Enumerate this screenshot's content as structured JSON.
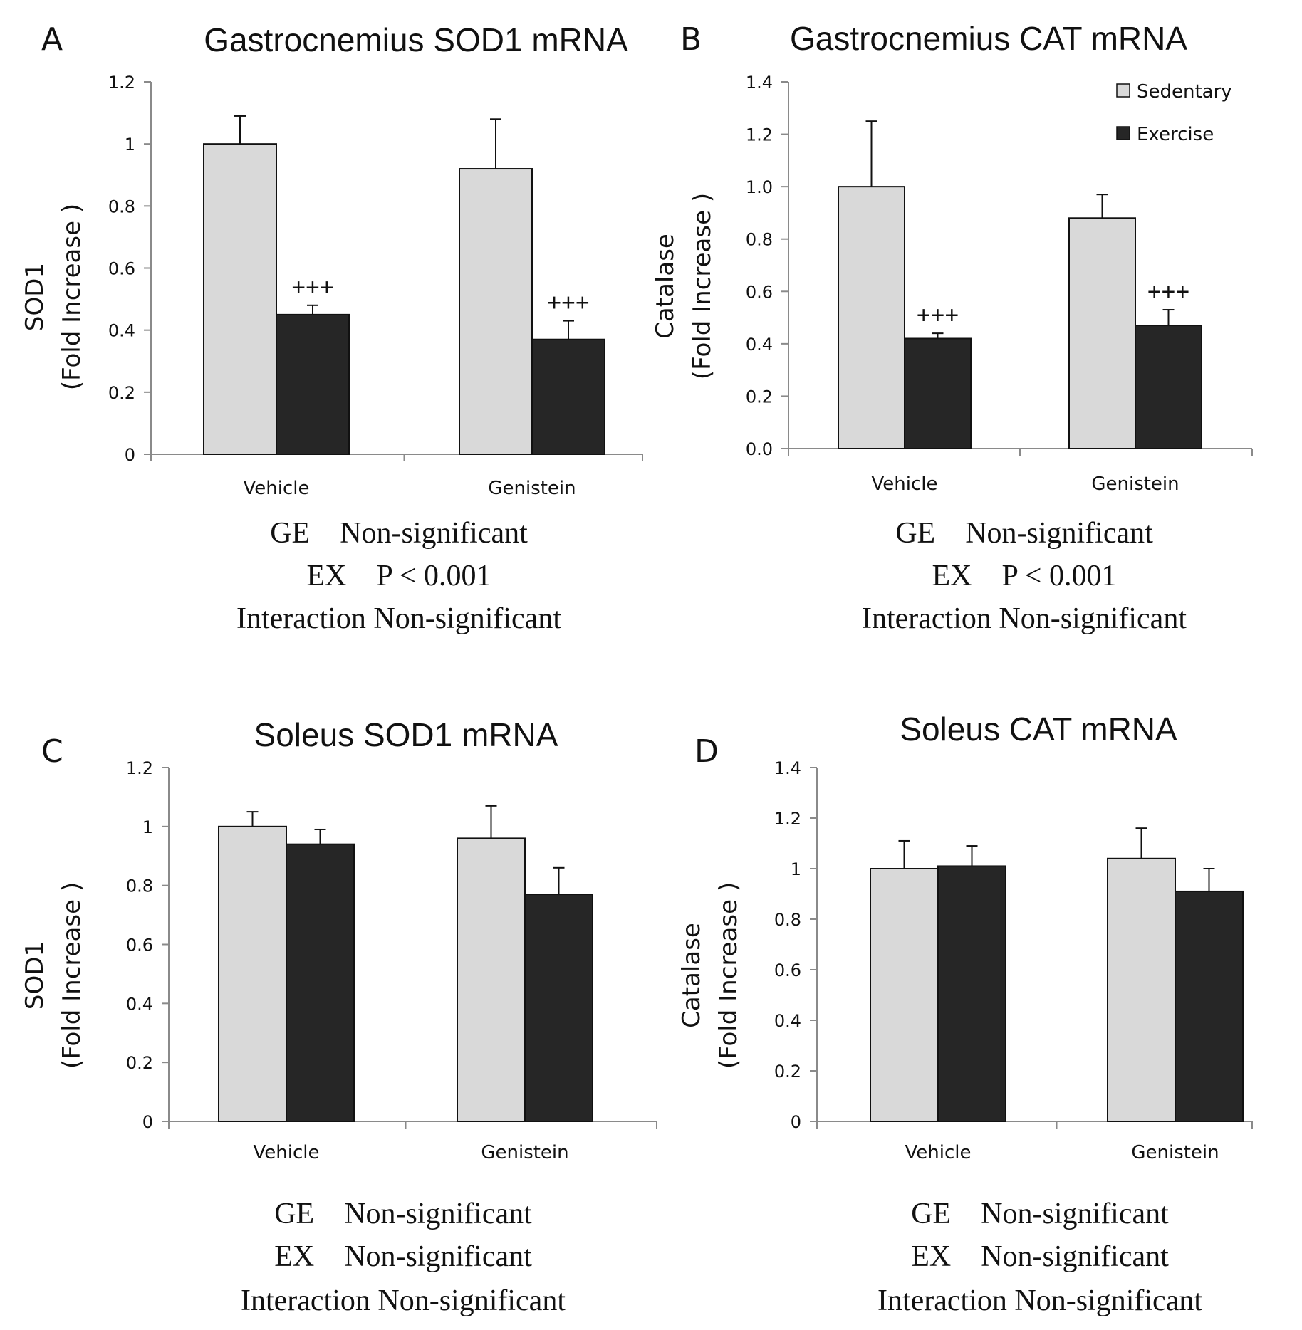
{
  "colors": {
    "sedentary": "#d9d9d9",
    "exercise": "#262626"
  },
  "legend": {
    "placement": "top-right of panel B",
    "items": [
      "Sedentary",
      "Exercise"
    ]
  },
  "chart_data": [
    {
      "panel": "A",
      "title": "Gastrocnemius SOD1 mRNA",
      "type": "bar",
      "ylabel_line1": "SOD1",
      "ylabel_line2": "(Fold Increase )",
      "ylim": [
        0,
        1.2
      ],
      "yticks": [
        "0",
        "0.2",
        "0.4",
        "0.6",
        "0.8",
        "1",
        "1.2"
      ],
      "categories": [
        "Vehicle",
        "Genistein"
      ],
      "series": [
        {
          "name": "Sedentary",
          "values": [
            1.0,
            0.92
          ],
          "errors": [
            0.09,
            0.16
          ]
        },
        {
          "name": "Exercise",
          "values": [
            0.45,
            0.37
          ],
          "errors": [
            0.03,
            0.06
          ]
        }
      ],
      "annotations": [
        "+++",
        "+++"
      ],
      "stats": [
        "GE    Non-significant",
        "EX    P < 0.001",
        "Interaction Non-significant"
      ]
    },
    {
      "panel": "B",
      "title": "Gastrocnemius CAT mRNA",
      "type": "bar",
      "ylabel_line1": "Catalase",
      "ylabel_line2": "(Fold Increase )",
      "ylim": [
        0,
        1.4
      ],
      "yticks": [
        "0.0",
        "0.2",
        "0.4",
        "0.6",
        "0.8",
        "1.0",
        "1.2",
        "1.4"
      ],
      "categories": [
        "Vehicle",
        "Genistein"
      ],
      "series": [
        {
          "name": "Sedentary",
          "values": [
            1.0,
            0.88
          ],
          "errors": [
            0.25,
            0.09
          ]
        },
        {
          "name": "Exercise",
          "values": [
            0.42,
            0.47
          ],
          "errors": [
            0.02,
            0.06
          ]
        }
      ],
      "annotations": [
        "+++",
        "+++"
      ],
      "stats": [
        "GE    Non-significant",
        "EX    P < 0.001",
        "Interaction Non-significant"
      ]
    },
    {
      "panel": "C",
      "title": "Soleus SOD1 mRNA",
      "type": "bar",
      "ylabel_line1": "SOD1",
      "ylabel_line2": "(Fold Increase )",
      "ylim": [
        0,
        1.2
      ],
      "yticks": [
        "0",
        "0.2",
        "0.4",
        "0.6",
        "0.8",
        "1",
        "1.2"
      ],
      "categories": [
        "Vehicle",
        "Genistein"
      ],
      "series": [
        {
          "name": "Sedentary",
          "values": [
            1.0,
            0.96
          ],
          "errors": [
            0.05,
            0.11
          ]
        },
        {
          "name": "Exercise",
          "values": [
            0.94,
            0.77
          ],
          "errors": [
            0.05,
            0.09
          ]
        }
      ],
      "annotations": [],
      "stats": [
        "GE    Non-significant",
        "EX    Non-significant",
        "Interaction Non-significant"
      ]
    },
    {
      "panel": "D",
      "title": "Soleus CAT mRNA",
      "type": "bar",
      "ylabel_line1": "Catalase",
      "ylabel_line2": "(Fold Increase )",
      "ylim": [
        0,
        1.4
      ],
      "yticks": [
        "0",
        "0.2",
        "0.4",
        "0.6",
        "0.8",
        "1",
        "1.2",
        "1.4"
      ],
      "categories": [
        "Vehicle",
        "Genistein"
      ],
      "series": [
        {
          "name": "Sedentary",
          "values": [
            1.0,
            1.04
          ],
          "errors": [
            0.11,
            0.12
          ]
        },
        {
          "name": "Exercise",
          "values": [
            1.01,
            0.91
          ],
          "errors": [
            0.08,
            0.09
          ]
        }
      ],
      "annotations": [],
      "stats": [
        "GE    Non-significant",
        "EX    Non-significant",
        "Interaction Non-significant"
      ]
    }
  ]
}
